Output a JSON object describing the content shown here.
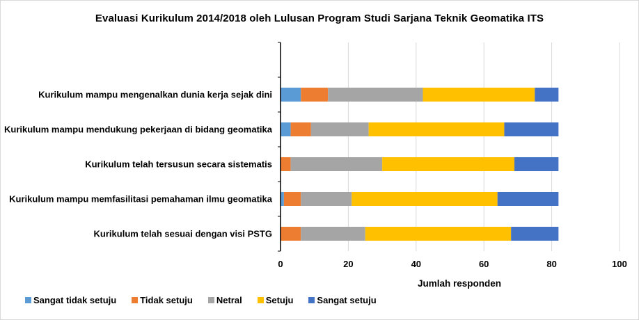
{
  "chart_data": {
    "type": "bar",
    "orientation": "horizontal",
    "stacked": true,
    "title": "Evaluasi  Kurikulum 2014/2018 oleh Lulusan Program Studi Sarjana Teknik Geomatika ITS",
    "xlabel": "Jumlah responden",
    "ylabel": "",
    "xlim": [
      0,
      100
    ],
    "xticks": [
      0,
      20,
      40,
      60,
      80,
      100
    ],
    "grid": true,
    "legend_position": "bottom-left",
    "categories": [
      "Kurikulum mampu mengenalkan dunia kerja sejak dini",
      "Kurikulum mampu mendukung pekerjaan di bidang geomatika",
      "Kurikulum telah tersusun secara sistematis",
      "Kurikulum mampu memfasilitasi pemahaman ilmu geomatika",
      "Kurikulum telah sesuai dengan visi PSTG"
    ],
    "series": [
      {
        "name": "Sangat tidak setuju",
        "color": "#5b9bd5",
        "values": [
          6,
          3,
          0,
          1,
          0
        ]
      },
      {
        "name": "Tidak setuju",
        "color": "#ed7d31",
        "values": [
          8,
          6,
          3,
          5,
          6
        ]
      },
      {
        "name": "Netral",
        "color": "#a5a5a5",
        "values": [
          28,
          17,
          27,
          15,
          19
        ]
      },
      {
        "name": "Setuju",
        "color": "#ffc000",
        "values": [
          33,
          40,
          39,
          43,
          43
        ]
      },
      {
        "name": "Sangat setuju",
        "color": "#4472c4",
        "values": [
          7,
          16,
          13,
          18,
          14
        ]
      }
    ]
  }
}
